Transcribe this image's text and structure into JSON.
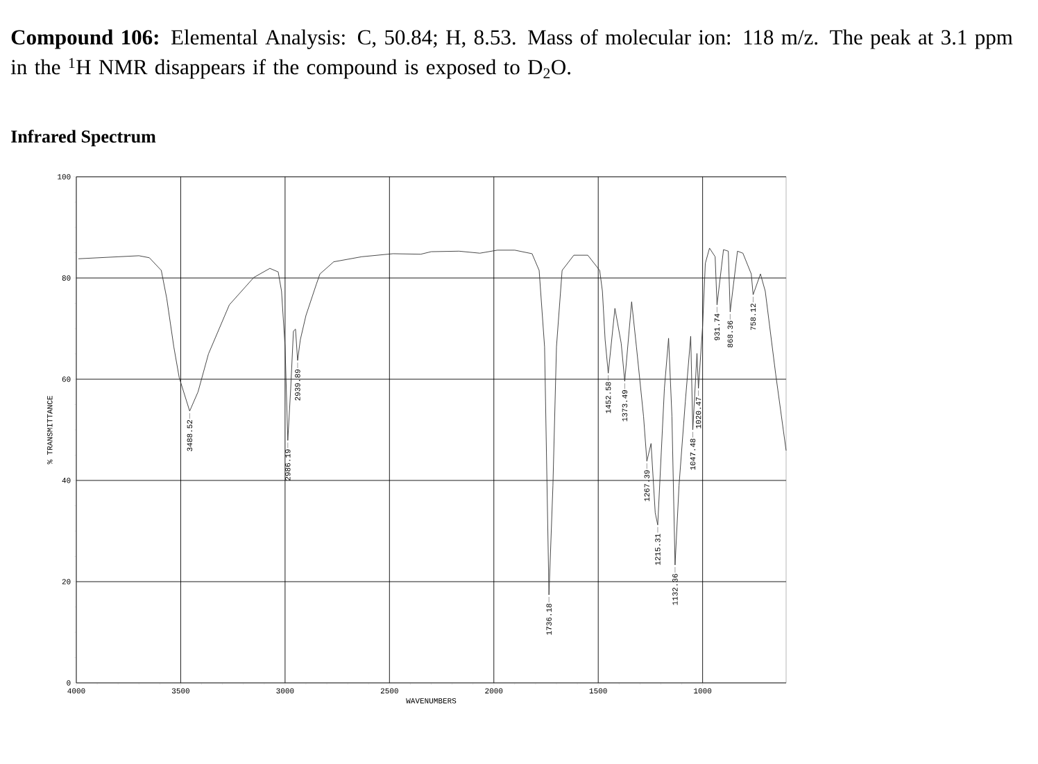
{
  "chart_data": {
    "type": "line",
    "title": "**Compound 106:** Elemental Analysis: C, 50.84; H, 8.53. Mass of molecular ion: 118 m/z. The peak at 3.1 ppm in the $^{1}$H NMR disappears if the compound is exposed to D$_{2}$O.",
    "subtitle": "Infrared Spectrum",
    "xlabel": "WAVENUMBERS",
    "ylabel": "% TRANSMITTANCE",
    "xlim": [
      4000,
      600
    ],
    "ylim": [
      0,
      100
    ],
    "xticks": [
      4000,
      3500,
      3000,
      2500,
      2000,
      1500,
      1000
    ],
    "yticks": [
      0,
      20,
      40,
      60,
      80,
      100
    ],
    "grid": true,
    "marker": "none",
    "line_style": "solid",
    "series": [
      {
        "color": "#333333",
        "x": [
          3990,
          3700,
          3650,
          3593,
          3567,
          3533,
          3507,
          3457,
          3417,
          3367,
          3267,
          3150,
          3073,
          3033,
          3017,
          3000,
          2987,
          2973,
          2960,
          2950,
          2940,
          2927,
          2900,
          2850,
          2833,
          2767,
          2633,
          2483,
          2350,
          2300,
          2167,
          2067,
          1983,
          1900,
          1817,
          1783,
          1757,
          1736,
          1717,
          1700,
          1673,
          1617,
          1550,
          1493,
          1480,
          1467,
          1452,
          1420,
          1390,
          1373,
          1340,
          1317,
          1283,
          1267,
          1247,
          1227,
          1215,
          1183,
          1163,
          1147,
          1132,
          1113,
          1083,
          1057,
          1047,
          1027,
          1020,
          1000,
          987,
          967,
          940,
          931,
          900,
          877,
          868,
          833,
          807,
          767,
          758,
          723,
          700,
          650,
          600
        ],
        "values": [
          83.8,
          84.4,
          84.0,
          81.5,
          76.0,
          66.4,
          60.3,
          53.7,
          57.5,
          65.0,
          74.7,
          80.1,
          81.9,
          81.2,
          77.4,
          66.4,
          47.9,
          58.2,
          69.5,
          69.9,
          63.7,
          67.8,
          72.6,
          78.8,
          80.8,
          83.2,
          84.2,
          84.8,
          84.7,
          85.2,
          85.3,
          84.9,
          85.5,
          85.5,
          84.8,
          81.5,
          66.4,
          17.4,
          39.0,
          66.4,
          81.5,
          84.5,
          84.5,
          81.5,
          77.4,
          67.8,
          61.2,
          74.0,
          67.1,
          59.6,
          75.3,
          66.4,
          52.7,
          43.8,
          47.3,
          33.6,
          31.2,
          58.2,
          68.1,
          52.7,
          23.3,
          39.0,
          55.5,
          68.5,
          50.0,
          65.1,
          58.2,
          70.5,
          82.9,
          85.9,
          84.2,
          74.7,
          85.6,
          85.3,
          73.3,
          85.3,
          84.9,
          80.8,
          76.7,
          80.8,
          77.4,
          61.0,
          45.9
        ]
      }
    ],
    "annotations": [
      {
        "text": "3488.52",
        "x": 3457,
        "y": 53.7
      },
      {
        "text": "2986.19",
        "x": 2987,
        "y": 47.9
      },
      {
        "text": "2939.89",
        "x": 2940,
        "y": 63.7
      },
      {
        "text": "1736.18",
        "x": 1736,
        "y": 17.4
      },
      {
        "text": "1452.58",
        "x": 1452,
        "y": 61.2
      },
      {
        "text": "1373.49",
        "x": 1373,
        "y": 59.6
      },
      {
        "text": "1267.39",
        "x": 1267,
        "y": 43.8
      },
      {
        "text": "1215.31",
        "x": 1215,
        "y": 31.2
      },
      {
        "text": "1132.36",
        "x": 1132,
        "y": 23.3
      },
      {
        "text": "1047.48",
        "x": 1047,
        "y": 50.0
      },
      {
        "text": "1020.47",
        "x": 1020,
        "y": 58.2
      },
      {
        "text": "931.74",
        "x": 931,
        "y": 74.7
      },
      {
        "text": "868.36",
        "x": 868,
        "y": 73.3
      },
      {
        "text": "758.12",
        "x": 758,
        "y": 76.7
      }
    ]
  }
}
